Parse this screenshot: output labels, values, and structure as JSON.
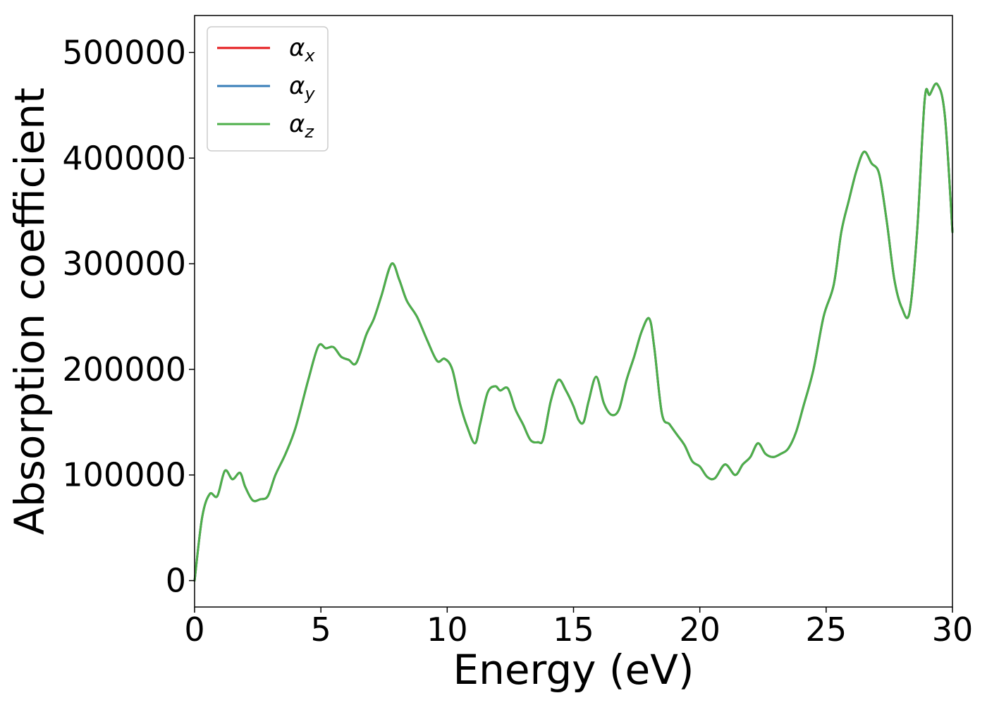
{
  "chart_data": {
    "type": "line",
    "xlabel": "Energy (eV)",
    "ylabel": "Absorption coefficient",
    "xlim": [
      0,
      30
    ],
    "ylim": [
      -25000,
      535000
    ],
    "xticks": [
      0,
      5,
      10,
      15,
      20,
      25,
      30
    ],
    "xtick_labels": [
      "0",
      "5",
      "10",
      "15",
      "20",
      "25",
      "30"
    ],
    "yticks": [
      0,
      100000,
      200000,
      300000,
      400000,
      500000
    ],
    "ytick_labels": [
      "0",
      "100000",
      "200000",
      "300000",
      "400000",
      "500000"
    ],
    "grid": false,
    "legend_position": "top-left",
    "x": [
      0,
      0.3,
      0.6,
      0.9,
      1.2,
      1.5,
      1.8,
      2.0,
      2.3,
      2.6,
      2.9,
      3.2,
      3.6,
      4.0,
      4.5,
      4.9,
      5.2,
      5.5,
      5.8,
      6.1,
      6.4,
      6.8,
      7.1,
      7.4,
      7.8,
      8.1,
      8.4,
      8.8,
      9.2,
      9.6,
      9.9,
      10.2,
      10.5,
      10.8,
      11.1,
      11.3,
      11.6,
      11.9,
      12.1,
      12.4,
      12.7,
      13.0,
      13.3,
      13.6,
      13.8,
      14.1,
      14.4,
      14.7,
      15.0,
      15.2,
      15.4,
      15.6,
      15.9,
      16.2,
      16.5,
      16.8,
      17.1,
      17.4,
      17.7,
      18.0,
      18.2,
      18.5,
      18.8,
      19.1,
      19.4,
      19.7,
      20.0,
      20.3,
      20.6,
      21.0,
      21.4,
      21.7,
      22.0,
      22.3,
      22.6,
      22.9,
      23.2,
      23.5,
      23.8,
      24.1,
      24.5,
      24.9,
      25.3,
      25.6,
      25.9,
      26.2,
      26.5,
      26.8,
      27.1,
      27.4,
      27.7,
      28.0,
      28.3,
      28.6,
      28.9,
      29.1,
      29.4,
      29.7,
      30.0
    ],
    "series": [
      {
        "name": "α_x",
        "color": "#e41a1c",
        "values": [
          0,
          60000,
          82000,
          80000,
          104000,
          96000,
          102000,
          89000,
          76000,
          77000,
          80000,
          100000,
          120000,
          145000,
          190000,
          222000,
          220000,
          221000,
          212000,
          209000,
          206000,
          233000,
          248000,
          270000,
          300000,
          285000,
          265000,
          250000,
          228000,
          208000,
          210000,
          200000,
          168000,
          145000,
          130000,
          148000,
          178000,
          184000,
          180000,
          182000,
          162000,
          148000,
          133000,
          131000,
          134000,
          170000,
          190000,
          180000,
          165000,
          152000,
          150000,
          170000,
          193000,
          168000,
          157000,
          162000,
          190000,
          212000,
          236000,
          248000,
          220000,
          158000,
          148000,
          138000,
          128000,
          113000,
          108000,
          98000,
          97000,
          110000,
          100000,
          110000,
          117000,
          130000,
          120000,
          117000,
          120000,
          125000,
          140000,
          165000,
          200000,
          250000,
          280000,
          330000,
          360000,
          388000,
          406000,
          395000,
          385000,
          340000,
          285000,
          258000,
          254000,
          330000,
          455000,
          460000,
          470000,
          440000,
          330000
        ]
      },
      {
        "name": "α_y",
        "color": "#377eb8",
        "values": [
          0,
          60000,
          82000,
          80000,
          104000,
          96000,
          102000,
          89000,
          76000,
          77000,
          80000,
          100000,
          120000,
          145000,
          190000,
          222000,
          220000,
          221000,
          212000,
          209000,
          206000,
          233000,
          248000,
          270000,
          300000,
          285000,
          265000,
          250000,
          228000,
          208000,
          210000,
          200000,
          168000,
          145000,
          130000,
          148000,
          178000,
          184000,
          180000,
          182000,
          162000,
          148000,
          133000,
          131000,
          134000,
          170000,
          190000,
          180000,
          165000,
          152000,
          150000,
          170000,
          193000,
          168000,
          157000,
          162000,
          190000,
          212000,
          236000,
          248000,
          220000,
          158000,
          148000,
          138000,
          128000,
          113000,
          108000,
          98000,
          97000,
          110000,
          100000,
          110000,
          117000,
          130000,
          120000,
          117000,
          120000,
          125000,
          140000,
          165000,
          200000,
          250000,
          280000,
          330000,
          360000,
          388000,
          406000,
          395000,
          385000,
          340000,
          285000,
          258000,
          254000,
          330000,
          455000,
          460000,
          470000,
          440000,
          330000
        ]
      },
      {
        "name": "α_z",
        "color": "#4daf4a",
        "values": [
          0,
          60000,
          82000,
          80000,
          104000,
          96000,
          102000,
          89000,
          76000,
          77000,
          80000,
          100000,
          120000,
          145000,
          190000,
          222000,
          220000,
          221000,
          212000,
          209000,
          206000,
          233000,
          248000,
          270000,
          300000,
          285000,
          265000,
          250000,
          228000,
          208000,
          210000,
          200000,
          168000,
          145000,
          130000,
          148000,
          178000,
          184000,
          180000,
          182000,
          162000,
          148000,
          133000,
          131000,
          134000,
          170000,
          190000,
          180000,
          165000,
          152000,
          150000,
          170000,
          193000,
          168000,
          157000,
          162000,
          190000,
          212000,
          236000,
          248000,
          220000,
          158000,
          148000,
          138000,
          128000,
          113000,
          108000,
          98000,
          97000,
          110000,
          100000,
          110000,
          117000,
          130000,
          120000,
          117000,
          120000,
          125000,
          140000,
          165000,
          200000,
          250000,
          280000,
          330000,
          360000,
          388000,
          406000,
          395000,
          385000,
          340000,
          285000,
          258000,
          254000,
          330000,
          455000,
          460000,
          470000,
          440000,
          330000
        ]
      }
    ],
    "legend": [
      {
        "symbol": "α",
        "subscript": "x",
        "color": "#e41a1c"
      },
      {
        "symbol": "α",
        "subscript": "y",
        "color": "#377eb8"
      },
      {
        "symbol": "α",
        "subscript": "z",
        "color": "#4daf4a"
      }
    ]
  }
}
